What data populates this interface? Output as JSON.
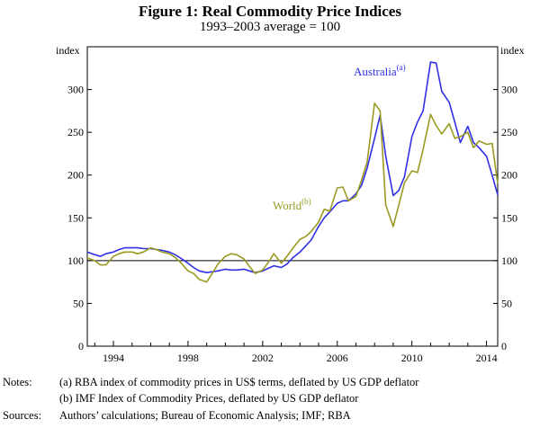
{
  "chart_data": {
    "type": "line",
    "title": "Figure 1: Real Commodity Price Indices",
    "subtitle": "1993–2003 average = 100",
    "ylabel_left": "index",
    "ylabel_right": "index",
    "ylim": [
      0,
      350
    ],
    "yticks": [
      "0",
      "50",
      "100",
      "150",
      "200",
      "250",
      "300"
    ],
    "xlim": [
      1992.6,
      2014.6
    ],
    "xticks": [
      {
        "value": 1994,
        "label": "1994"
      },
      {
        "value": 1998,
        "label": "1998"
      },
      {
        "value": 2002,
        "label": "2002"
      },
      {
        "value": 2006,
        "label": "2006"
      },
      {
        "value": 2010,
        "label": "2010"
      },
      {
        "value": 2014,
        "label": "2014"
      }
    ],
    "grid": false,
    "reference_line": 100,
    "series": [
      {
        "name": "Australia",
        "superscript": "(a)",
        "color": "#2f2fe6",
        "x": [
          1992.6,
          1993.0,
          1993.3,
          1993.6,
          1994.0,
          1994.3,
          1994.6,
          1995.0,
          1995.3,
          1995.6,
          1996.0,
          1996.3,
          1996.6,
          1997.0,
          1997.3,
          1997.6,
          1998.0,
          1998.3,
          1998.6,
          1999.0,
          1999.3,
          1999.6,
          2000.0,
          2000.3,
          2000.6,
          2001.0,
          2001.3,
          2001.6,
          2002.0,
          2002.3,
          2002.6,
          2003.0,
          2003.3,
          2003.6,
          2004.0,
          2004.3,
          2004.6,
          2005.0,
          2005.3,
          2005.6,
          2006.0,
          2006.3,
          2006.6,
          2007.0,
          2007.3,
          2007.6,
          2008.0,
          2008.3,
          2008.6,
          2009.0,
          2009.3,
          2009.6,
          2010.0,
          2010.3,
          2010.6,
          2011.0,
          2011.3,
          2011.6,
          2012.0,
          2012.3,
          2012.6,
          2013.0,
          2013.3,
          2013.6,
          2014.0,
          2014.3,
          2014.6
        ],
        "values": [
          110,
          107,
          105,
          108,
          110,
          113,
          115,
          115,
          115,
          114,
          114,
          113,
          112,
          110,
          107,
          103,
          97,
          92,
          88,
          86,
          87,
          88,
          90,
          89,
          89,
          90,
          88,
          86,
          88,
          91,
          94,
          92,
          96,
          103,
          110,
          117,
          124,
          140,
          150,
          157,
          167,
          170,
          170,
          178,
          188,
          208,
          243,
          270,
          222,
          176,
          182,
          198,
          245,
          262,
          275,
          332,
          331,
          298,
          285,
          262,
          238,
          257,
          238,
          232,
          222,
          200,
          177
        ]
      },
      {
        "name": "World",
        "superscript": "(b)",
        "color": "#9a9a22",
        "x": [
          1992.6,
          1993.0,
          1993.3,
          1993.6,
          1994.0,
          1994.3,
          1994.6,
          1995.0,
          1995.3,
          1995.6,
          1996.0,
          1996.3,
          1996.6,
          1997.0,
          1997.3,
          1997.6,
          1998.0,
          1998.3,
          1998.6,
          1999.0,
          1999.3,
          1999.6,
          2000.0,
          2000.3,
          2000.6,
          2001.0,
          2001.3,
          2001.6,
          2002.0,
          2002.3,
          2002.6,
          2003.0,
          2003.3,
          2003.6,
          2004.0,
          2004.3,
          2004.6,
          2005.0,
          2005.3,
          2005.6,
          2006.0,
          2006.3,
          2006.6,
          2007.0,
          2007.3,
          2007.6,
          2008.0,
          2008.3,
          2008.6,
          2009.0,
          2009.3,
          2009.6,
          2010.0,
          2010.3,
          2010.6,
          2011.0,
          2011.3,
          2011.6,
          2012.0,
          2012.3,
          2012.6,
          2013.0,
          2013.3,
          2013.6,
          2014.0,
          2014.3,
          2014.6
        ],
        "values": [
          103,
          100,
          95,
          95,
          105,
          108,
          110,
          110,
          108,
          110,
          115,
          113,
          110,
          108,
          104,
          98,
          88,
          85,
          78,
          75,
          85,
          96,
          105,
          108,
          107,
          102,
          93,
          85,
          89,
          98,
          108,
          97,
          105,
          114,
          125,
          128,
          134,
          145,
          160,
          158,
          185,
          186,
          170,
          175,
          194,
          215,
          284,
          275,
          165,
          140,
          165,
          191,
          205,
          203,
          230,
          271,
          258,
          248,
          260,
          243,
          245,
          250,
          232,
          240,
          236,
          237,
          190
        ]
      }
    ],
    "notes": {
      "notes_label": "Notes:",
      "note_a_marker": "(a)",
      "note_a": "RBA index of commodity prices in US$ terms, deflated by US GDP deflator",
      "note_b_marker": "(b)",
      "note_b": "IMF Index of Commodity Prices, deflated by US GDP deflator",
      "sources_label": "Sources:",
      "sources": "Authors’ calculations; Bureau of Economic Analysis; IMF; RBA"
    }
  }
}
